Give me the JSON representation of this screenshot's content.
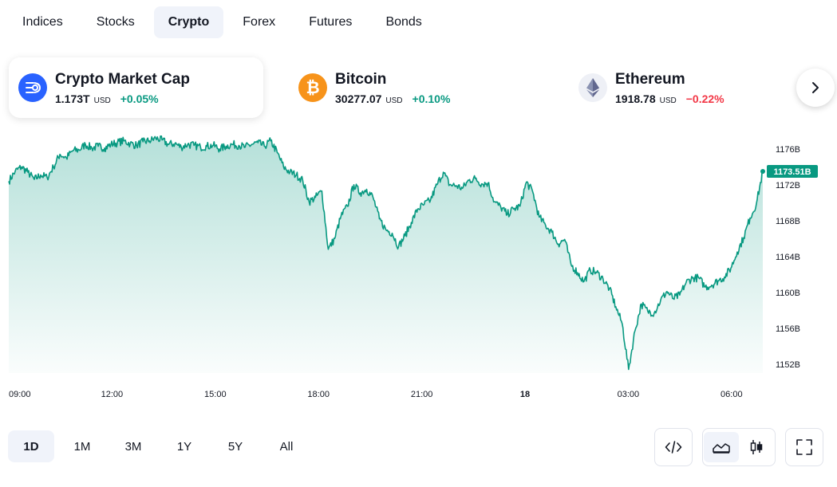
{
  "tabs": [
    {
      "label": "Indices",
      "active": false
    },
    {
      "label": "Stocks",
      "active": false
    },
    {
      "label": "Crypto",
      "active": true
    },
    {
      "label": "Forex",
      "active": false
    },
    {
      "label": "Futures",
      "active": false
    },
    {
      "label": "Bonds",
      "active": false
    }
  ],
  "tickers": [
    {
      "name": "Crypto Market Cap",
      "value": "1.173T",
      "currency": "USD",
      "change": "+0.05%",
      "direction": "up",
      "icon": "crypto-market-cap-icon",
      "color": "#2962ff"
    },
    {
      "name": "Bitcoin",
      "value": "30277.07",
      "currency": "USD",
      "change": "+0.10%",
      "direction": "up",
      "icon": "bitcoin-icon",
      "color": "#f7931a"
    },
    {
      "name": "Ethereum",
      "value": "1918.78",
      "currency": "USD",
      "change": "−0.22%",
      "direction": "down",
      "icon": "ethereum-icon",
      "color": "#627eea"
    }
  ],
  "chart_data": {
    "type": "area",
    "title": "",
    "xlabel": "",
    "ylabel": "",
    "line_color": "#089981",
    "fill_color": "#089981",
    "x_ticks": [
      "09:00",
      "12:00",
      "15:00",
      "18:00",
      "21:00",
      "18",
      "03:00",
      "06:00"
    ],
    "y_ticks": [
      "1176B",
      "1172B",
      "1168B",
      "1164B",
      "1160B",
      "1156B",
      "1152B"
    ],
    "ylim": [
      1151,
      1177.5
    ],
    "last_value_label": "1173.51B",
    "grid": false,
    "series": [
      {
        "values": [
          1172.4,
          1173.5,
          1174.0,
          1173.4,
          1172.6,
          1173.1,
          1172.8,
          1174.0,
          1175.4,
          1175.0,
          1175.8,
          1175.9,
          1176.5,
          1176.1,
          1176.3,
          1176.1,
          1176.5,
          1176.7,
          1176.9,
          1176.6,
          1176.4,
          1176.8,
          1176.9,
          1177.2,
          1177.0,
          1176.5,
          1176.6,
          1176.2,
          1176.5,
          1176.4,
          1176.2,
          1176.3,
          1176.4,
          1176.0,
          1176.3,
          1176.5,
          1176.4,
          1176.2,
          1176.5,
          1176.7,
          1176.3,
          1176.9,
          1175.6,
          1174.0,
          1173.4,
          1173.1,
          1172.5,
          1170.1,
          1170.6,
          1171.3,
          1164.8,
          1166.0,
          1168.5,
          1169.6,
          1172.0,
          1171.1,
          1171.5,
          1170.6,
          1168.2,
          1167.0,
          1166.6,
          1165.1,
          1166.3,
          1167.8,
          1169.3,
          1169.8,
          1170.3,
          1172.0,
          1173.4,
          1172.0,
          1171.9,
          1171.6,
          1172.5,
          1172.7,
          1172.1,
          1172.2,
          1170.1,
          1169.5,
          1168.7,
          1169.3,
          1169.6,
          1172.3,
          1171.2,
          1168.4,
          1167.5,
          1166.7,
          1165.4,
          1165.9,
          1163.1,
          1162.2,
          1161.2,
          1162.5,
          1162.2,
          1161.5,
          1160.4,
          1158.4,
          1156.5,
          1151.4,
          1155.7,
          1158.7,
          1157.9,
          1157.7,
          1159.1,
          1160.1,
          1159.3,
          1159.7,
          1161.1,
          1161.6,
          1161.6,
          1160.6,
          1160.8,
          1161.3,
          1161.7,
          1162.7,
          1164.5,
          1166.1,
          1168.3,
          1169.9,
          1173.5
        ]
      }
    ]
  },
  "ranges": [
    {
      "label": "1D",
      "active": true
    },
    {
      "label": "1M",
      "active": false
    },
    {
      "label": "3M",
      "active": false
    },
    {
      "label": "1Y",
      "active": false
    },
    {
      "label": "5Y",
      "active": false
    },
    {
      "label": "All",
      "active": false
    }
  ],
  "tools": {
    "embed_icon": "code-icon",
    "area_icon": "area-chart-icon",
    "candles_icon": "candlestick-icon",
    "fullscreen_icon": "fullscreen-icon"
  }
}
